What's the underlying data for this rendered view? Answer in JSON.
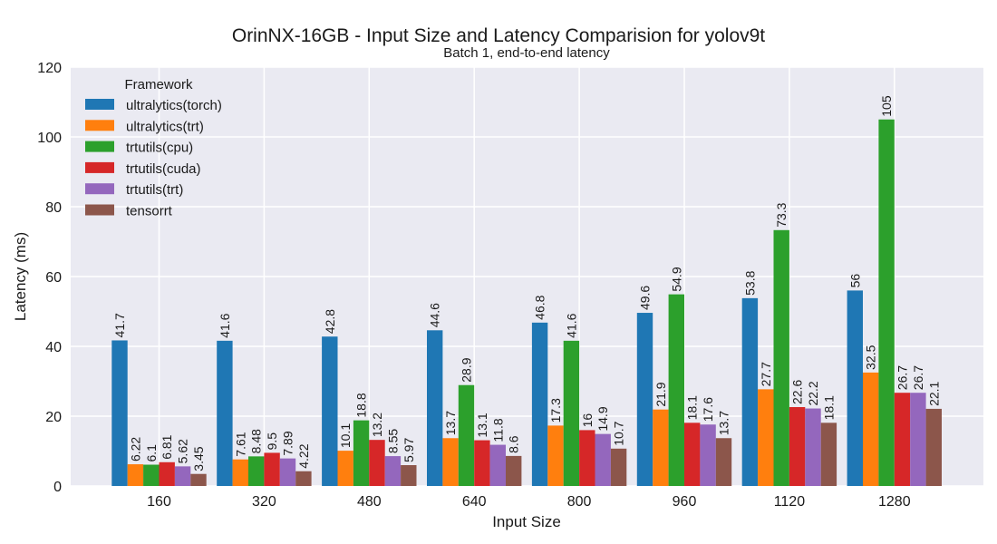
{
  "chart_data": {
    "type": "bar",
    "title": "OrinNX-16GB - Input Size and Latency Comparision for yolov9t",
    "subtitle": "Batch 1, end-to-end latency",
    "xlabel": "Input Size",
    "ylabel": "Latency (ms)",
    "ylim": [
      0,
      120
    ],
    "yticks": [
      0,
      20,
      40,
      60,
      80,
      100,
      120
    ],
    "grid": true,
    "legend_title": "Framework",
    "legend_position": "top-left",
    "categories": [
      "160",
      "320",
      "480",
      "640",
      "800",
      "960",
      "1120",
      "1280"
    ],
    "series": [
      {
        "name": "ultralytics(torch)",
        "color": "#1f77b4",
        "values": [
          41.7,
          41.6,
          42.8,
          44.6,
          46.8,
          49.6,
          53.8,
          56
        ]
      },
      {
        "name": "ultralytics(trt)",
        "color": "#ff7f0e",
        "values": [
          6.22,
          7.61,
          10.1,
          13.7,
          17.3,
          21.9,
          27.7,
          32.5
        ]
      },
      {
        "name": "trtutils(cpu)",
        "color": "#2ca02c",
        "values": [
          6.1,
          8.48,
          18.8,
          28.9,
          41.6,
          54.9,
          73.3,
          105
        ]
      },
      {
        "name": "trtutils(cuda)",
        "color": "#d62728",
        "values": [
          6.81,
          9.5,
          13.2,
          13.1,
          16,
          18.1,
          22.6,
          26.7
        ]
      },
      {
        "name": "trtutils(trt)",
        "color": "#9467bd",
        "values": [
          5.62,
          7.89,
          8.55,
          11.8,
          14.9,
          17.6,
          22.2,
          26.7
        ]
      },
      {
        "name": "tensorrt",
        "color": "#8c564b",
        "values": [
          3.45,
          4.22,
          5.97,
          8.6,
          10.7,
          13.7,
          18.1,
          22.1
        ]
      }
    ]
  }
}
